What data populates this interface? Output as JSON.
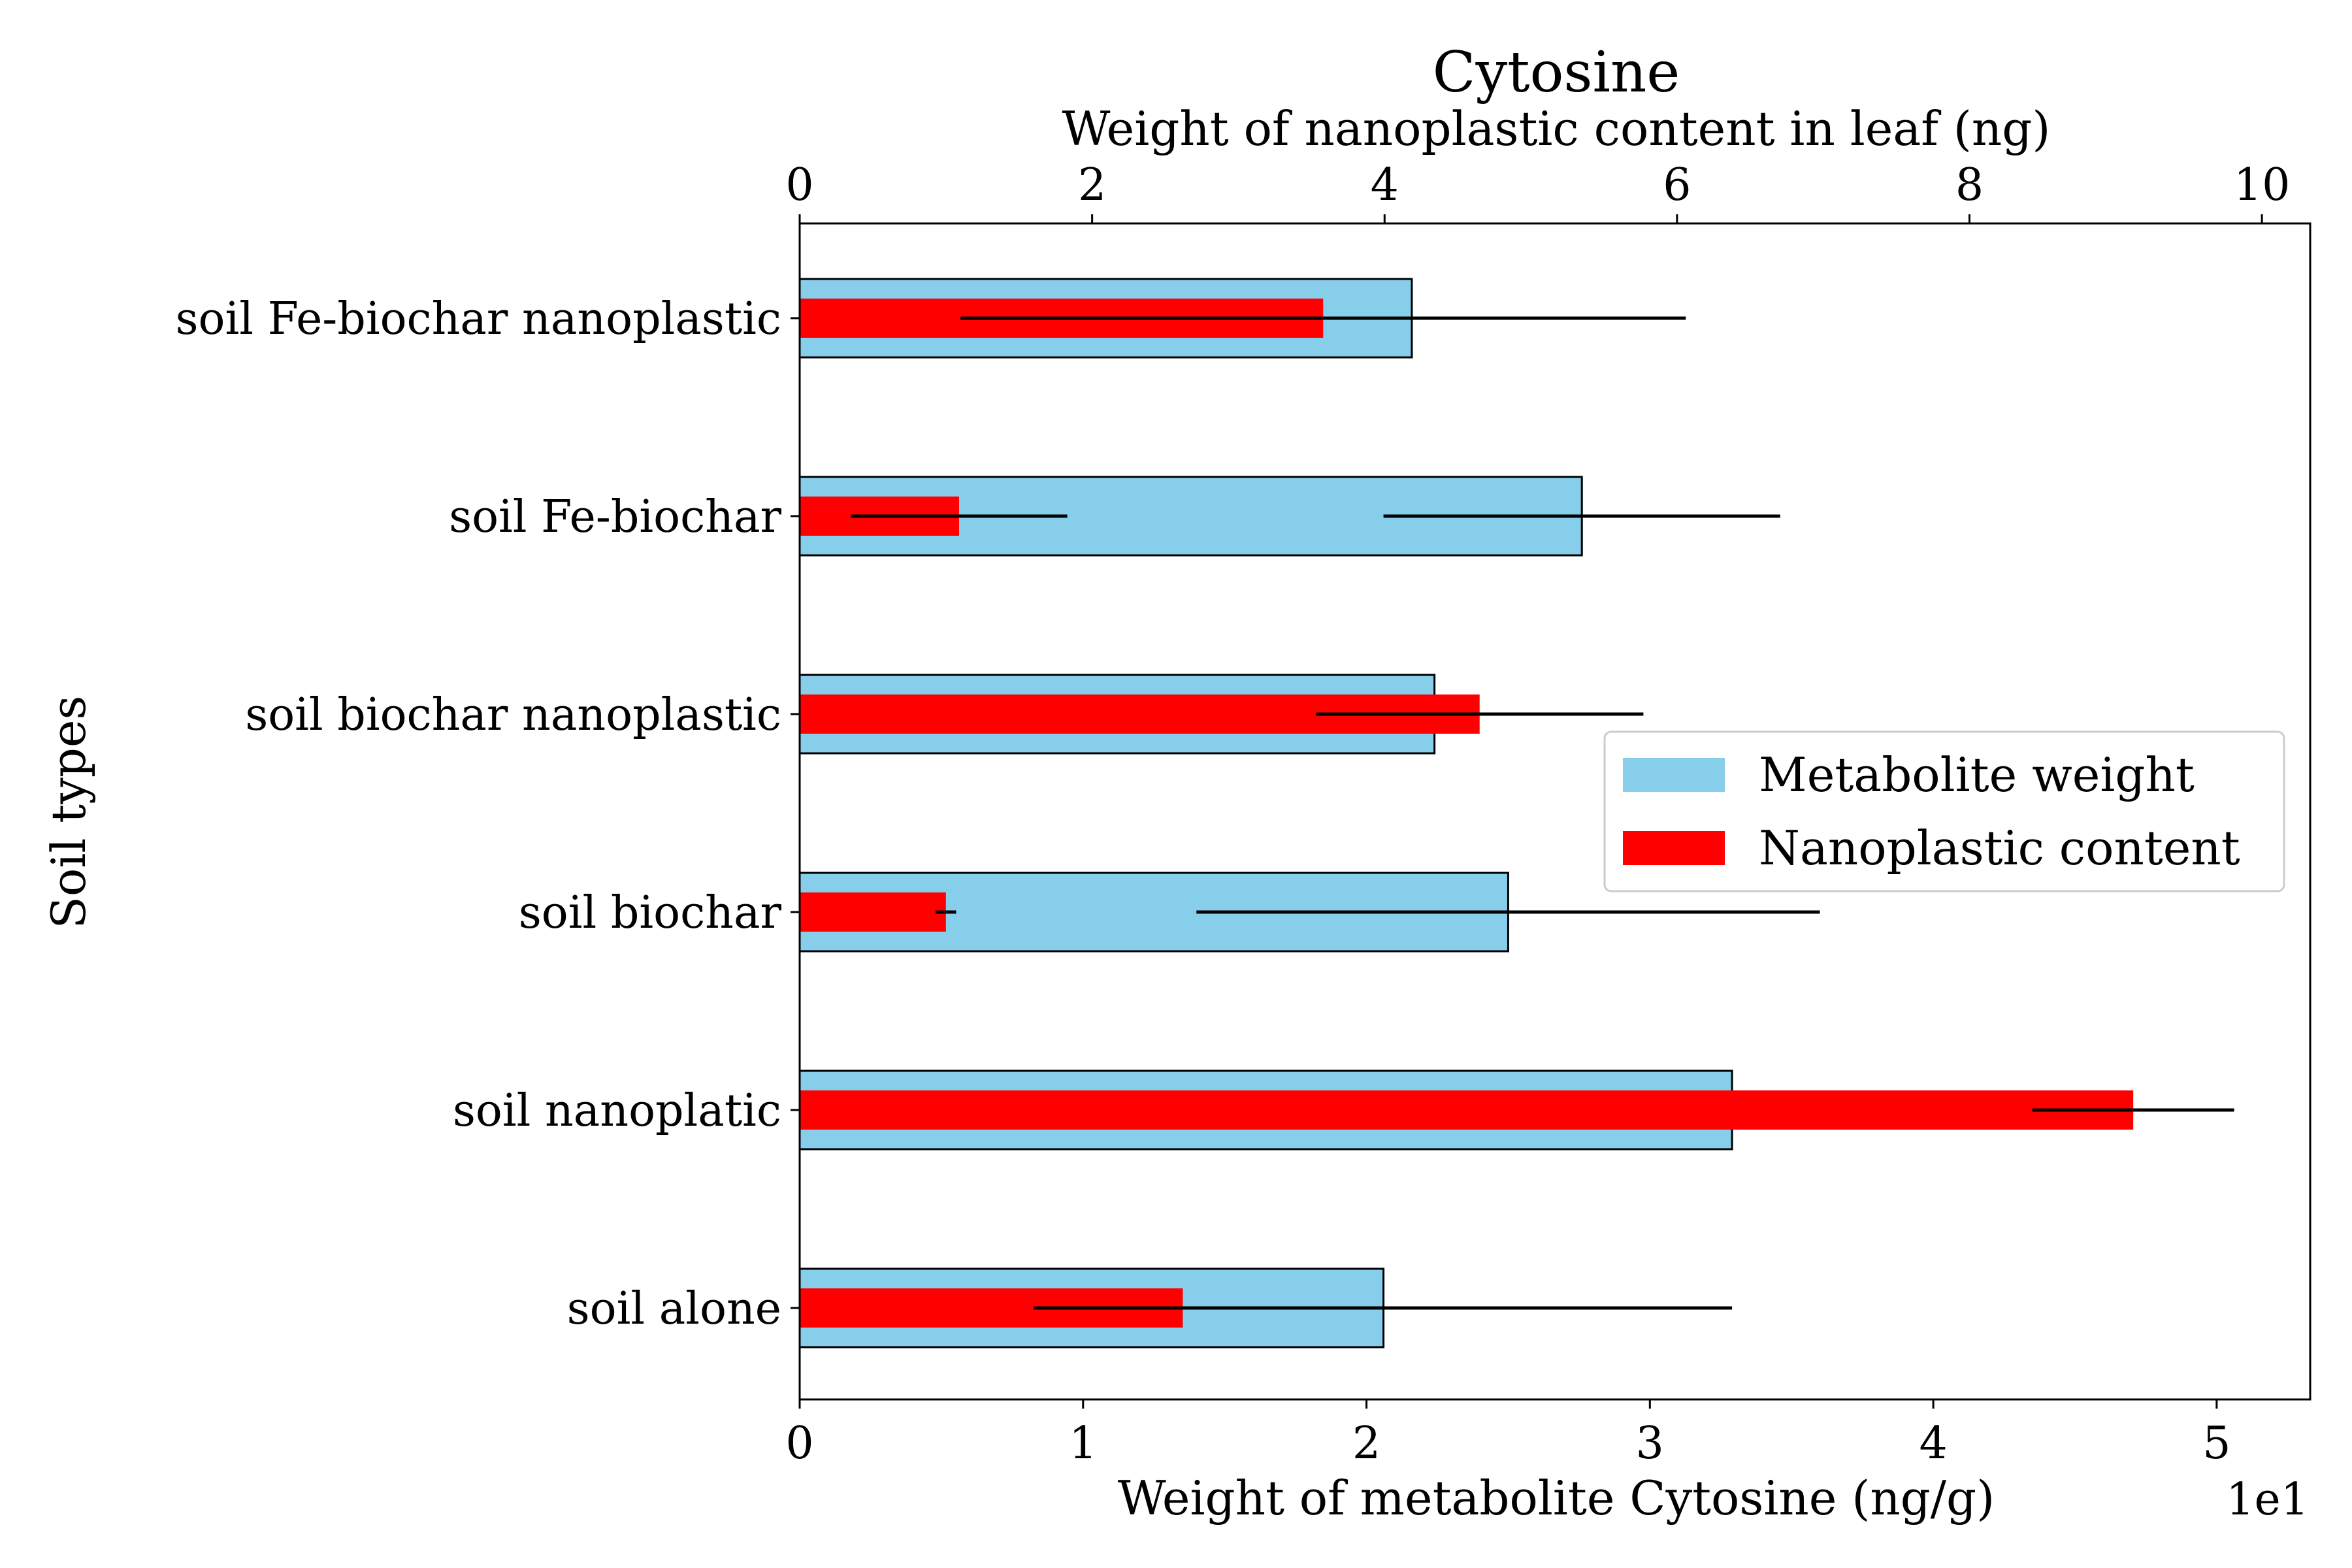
{
  "chart_data": {
    "type": "bar",
    "orientation": "horizontal",
    "title": "Cytosine",
    "title_color": "#a52a2a",
    "categories": [
      "soil alone",
      "soil nanoplatic",
      "soil biochar",
      "soil biochar nanoplastic",
      "soil Fe-biochar",
      "soil Fe-biochar nanoplastic"
    ],
    "series": [
      {
        "name": "Metabolite weight",
        "axis": "bottom",
        "color": "#87ceeb",
        "values": [
          20.6,
          32.9,
          25.0,
          22.4,
          27.6,
          21.6
        ],
        "errors": [
          12.3,
          0,
          11.0,
          0,
          7.0,
          0
        ]
      },
      {
        "name": "Nanoplastic content",
        "axis": "top",
        "color": "#ff0000",
        "values": [
          2.62,
          9.12,
          1.0,
          4.65,
          1.09,
          3.58
        ],
        "errors": [
          1.02,
          0.69,
          0.07,
          1.12,
          0.74,
          2.48
        ]
      }
    ],
    "bottom_axis": {
      "label": "Weight of metabolite Cytosine (ng/g)",
      "lim": [
        0,
        53.3
      ],
      "ticks": [
        0,
        10,
        20,
        30,
        40,
        50
      ],
      "tick_labels": [
        "0",
        "1",
        "2",
        "3",
        "4",
        "5"
      ],
      "offset_text": "1e1"
    },
    "top_axis": {
      "label": "Weight of nanoplastic content in leaf (ng)",
      "lim": [
        0,
        10.33
      ],
      "ticks": [
        0,
        2,
        4,
        6,
        8,
        10
      ],
      "tick_labels": [
        "0",
        "2",
        "4",
        "6",
        "8",
        "10"
      ]
    },
    "ylabel": "Soil types",
    "legend": {
      "position": "center-right",
      "entries": [
        "Metabolite weight",
        "Nanoplastic content"
      ]
    },
    "grid": false
  }
}
